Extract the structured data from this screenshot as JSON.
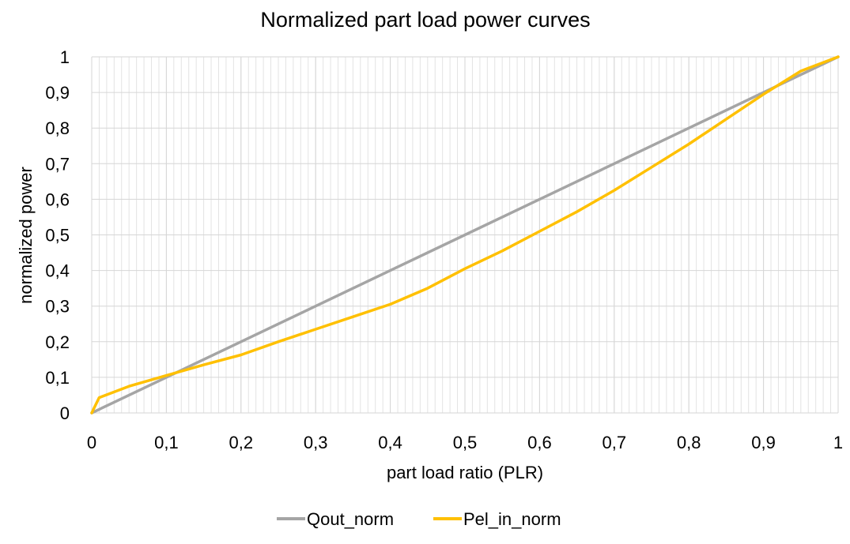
{
  "chart_data": {
    "type": "line",
    "title": "Normalized part load power curves",
    "xlabel": "part load ratio (PLR)",
    "ylabel": "normalized power",
    "xlim": [
      0,
      1
    ],
    "ylim": [
      0,
      1
    ],
    "x_ticks": [
      "0",
      "0,1",
      "0,2",
      "0,3",
      "0,4",
      "0,5",
      "0,6",
      "0,7",
      "0,8",
      "0,9",
      "1"
    ],
    "y_ticks": [
      "0",
      "0,1",
      "0,2",
      "0,3",
      "0,4",
      "0,5",
      "0,6",
      "0,7",
      "0,8",
      "0,9",
      "1"
    ],
    "grid": true,
    "legend_position": "bottom",
    "series": [
      {
        "name": "Qout_norm",
        "color": "#A5A5A5",
        "x": [
          0,
          0.1,
          0.2,
          0.3,
          0.4,
          0.5,
          0.6,
          0.7,
          0.8,
          0.9,
          1.0
        ],
        "y": [
          0,
          0.1,
          0.2,
          0.3,
          0.4,
          0.5,
          0.6,
          0.7,
          0.8,
          0.9,
          1.0
        ]
      },
      {
        "name": "Pel_in_norm",
        "color": "#FFC000",
        "x": [
          0,
          0.01,
          0.05,
          0.1,
          0.15,
          0.2,
          0.25,
          0.3,
          0.35,
          0.4,
          0.45,
          0.5,
          0.55,
          0.6,
          0.65,
          0.7,
          0.75,
          0.8,
          0.85,
          0.9,
          0.95,
          1.0
        ],
        "y": [
          0,
          0.043,
          0.075,
          0.105,
          0.135,
          0.163,
          0.2,
          0.235,
          0.27,
          0.305,
          0.35,
          0.405,
          0.455,
          0.51,
          0.565,
          0.625,
          0.69,
          0.755,
          0.825,
          0.895,
          0.96,
          1.0
        ]
      }
    ]
  }
}
